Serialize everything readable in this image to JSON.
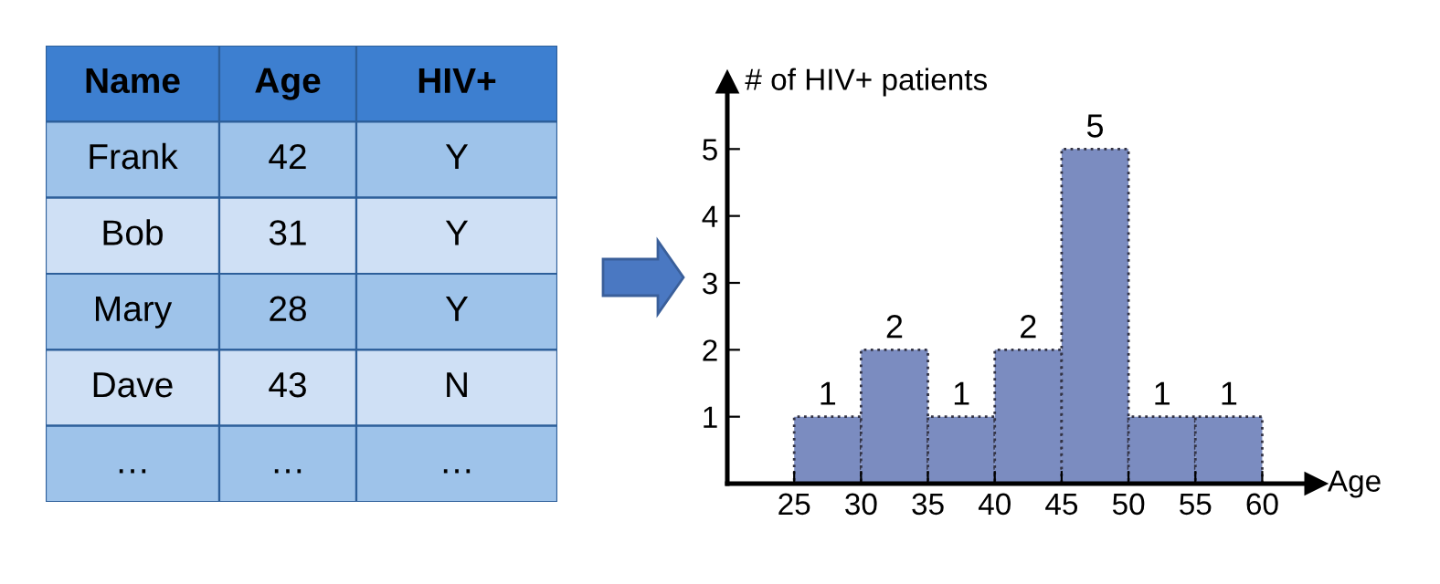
{
  "chart_data": [
    {
      "type": "other",
      "categories": [
        "Name",
        "Age",
        "HIV+"
      ],
      "cell_labels": [
        [
          "Frank",
          "42",
          "Y"
        ],
        [
          "Bob",
          "31",
          "Y"
        ],
        [
          "Mary",
          "28",
          "Y"
        ],
        [
          "Dave",
          "43",
          "N"
        ],
        [
          "…",
          "…",
          "…"
        ]
      ]
    },
    {
      "type": "histogram",
      "bins": [
        25,
        30,
        35,
        40,
        45,
        50,
        55,
        60
      ],
      "values": [
        1,
        2,
        1,
        2,
        5,
        1,
        1
      ],
      "color": "#7b8cc0",
      "ylabel": "# of HIV+ patients",
      "xlabel": "Age",
      "xlim": [
        20,
        64
      ],
      "ylim": [
        0,
        6
      ],
      "xticks": [
        25,
        30,
        35,
        40,
        45,
        50,
        55,
        60
      ],
      "yticks": [
        1,
        2,
        3,
        4,
        5
      ],
      "data_labels": true,
      "grid": false,
      "line_style": "dotted"
    }
  ]
}
